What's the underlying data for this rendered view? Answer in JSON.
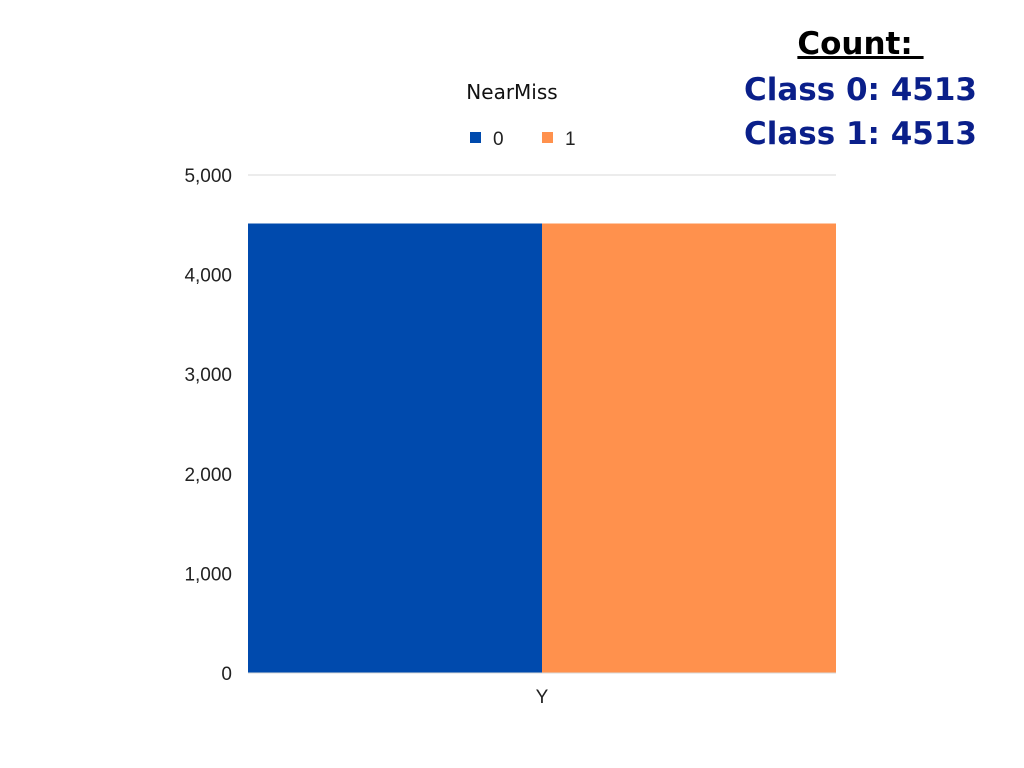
{
  "chart_data": {
    "type": "bar",
    "title": "NearMiss",
    "categories": [
      "Y"
    ],
    "series": [
      {
        "name": "0",
        "values": [
          4513
        ],
        "color": "#004aad"
      },
      {
        "name": "1",
        "values": [
          4513
        ],
        "color": "#ff914d"
      }
    ],
    "ylim": [
      0,
      5000
    ],
    "yticks": [
      "0",
      "1,000",
      "2,000",
      "3,000",
      "4,000",
      "5,000"
    ],
    "ytick_values": [
      0,
      1000,
      2000,
      3000,
      4000,
      5000
    ],
    "grid": true,
    "legend_position": "top"
  },
  "annotation": {
    "title": "Count: ",
    "lines": [
      "Class 0: 4513",
      "Class 1: 4513"
    ]
  }
}
